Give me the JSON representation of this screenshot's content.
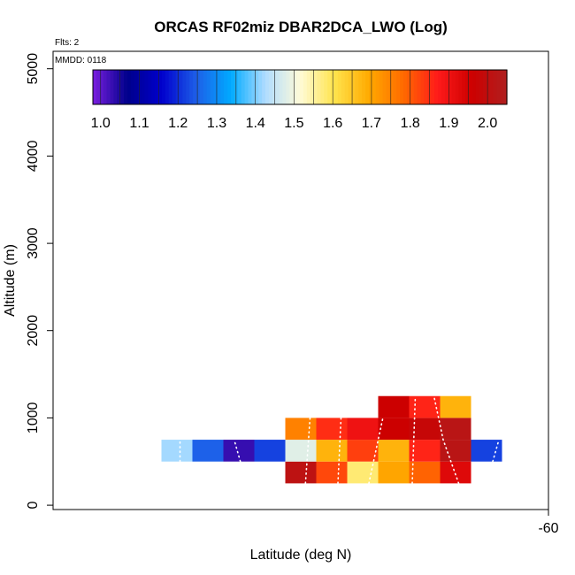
{
  "chart_data": {
    "type": "heatmap",
    "title": "ORCAS RF02miz DBAR2DCA_LWO (Log)",
    "flights_label": "Flts: 2",
    "date_label": "MMDD: 0118",
    "xlabel": "Latitude (deg N)",
    "ylabel": "Altitude (m)",
    "xlim": [
      -76,
      -60
    ],
    "ylim": [
      -50,
      5200
    ],
    "x_ticks": [
      -60
    ],
    "y_ticks": [
      0,
      1000,
      2000,
      3000,
      4000,
      5000
    ],
    "colorbar": {
      "ticks": [
        "1.0",
        "1.1",
        "1.2",
        "1.3",
        "1.4",
        "1.5",
        "1.6",
        "1.7",
        "1.8",
        "1.9",
        "2.0"
      ],
      "range": [
        0.98,
        2.05
      ],
      "colors": [
        "#7b1fe0",
        "#00008b",
        "#0000cd",
        "#1e5fe8",
        "#00aaff",
        "#b0dcff",
        "#fffbd8",
        "#ffe44d",
        "#ffaa00",
        "#ff6a00",
        "#ff1a1a",
        "#cc0000",
        "#b02020"
      ]
    },
    "cells": [
      {
        "lat": -72.0,
        "alt": 625,
        "value": 1.42
      },
      {
        "lat": -71.0,
        "alt": 625,
        "value": 1.25
      },
      {
        "lat": -70.0,
        "alt": 625,
        "value": 1.03
      },
      {
        "lat": -69.0,
        "alt": 625,
        "value": 1.22
      },
      {
        "lat": -68.0,
        "alt": 375,
        "value": 2.01
      },
      {
        "lat": -68.0,
        "alt": 625,
        "value": 1.48
      },
      {
        "lat": -68.0,
        "alt": 875,
        "value": 1.75
      },
      {
        "lat": -67.0,
        "alt": 375,
        "value": 1.82
      },
      {
        "lat": -67.0,
        "alt": 625,
        "value": 1.68
      },
      {
        "lat": -67.0,
        "alt": 875,
        "value": 1.85
      },
      {
        "lat": -66.0,
        "alt": 375,
        "value": 1.58
      },
      {
        "lat": -66.0,
        "alt": 625,
        "value": 1.83
      },
      {
        "lat": -66.0,
        "alt": 875,
        "value": 1.9
      },
      {
        "lat": -65.0,
        "alt": 375,
        "value": 1.7
      },
      {
        "lat": -65.0,
        "alt": 625,
        "value": 1.68
      },
      {
        "lat": -65.0,
        "alt": 875,
        "value": 1.96
      },
      {
        "lat": -65.0,
        "alt": 1125,
        "value": 1.96
      },
      {
        "lat": -64.0,
        "alt": 375,
        "value": 1.79
      },
      {
        "lat": -64.0,
        "alt": 625,
        "value": 1.86
      },
      {
        "lat": -64.0,
        "alt": 875,
        "value": 1.98
      },
      {
        "lat": -64.0,
        "alt": 1125,
        "value": 1.86
      },
      {
        "lat": -63.0,
        "alt": 375,
        "value": 1.93
      },
      {
        "lat": -63.0,
        "alt": 625,
        "value": 2.02
      },
      {
        "lat": -63.0,
        "alt": 875,
        "value": 2.02
      },
      {
        "lat": -63.0,
        "alt": 1125,
        "value": 1.68
      },
      {
        "lat": -62.0,
        "alt": 625,
        "value": 1.22
      }
    ],
    "flight_track": {
      "style": "dotted",
      "color": "#ffffff",
      "tracks": [
        [
          [
            -71.9,
            500
          ],
          [
            -71.9,
            750
          ]
        ],
        [
          [
            -69.95,
            500
          ],
          [
            -70.15,
            750
          ]
        ],
        [
          [
            -67.85,
            250
          ],
          [
            -67.7,
            1000
          ]
        ],
        [
          [
            -66.8,
            250
          ],
          [
            -66.7,
            1000
          ]
        ],
        [
          [
            -65.8,
            250
          ],
          [
            -65.35,
            1000
          ]
        ],
        [
          [
            -64.4,
            250
          ],
          [
            -64.3,
            1250
          ]
        ],
        [
          [
            -62.9,
            250
          ],
          [
            -63.4,
            750
          ],
          [
            -63.7,
            1250
          ]
        ],
        [
          [
            -61.8,
            500
          ],
          [
            -61.6,
            750
          ]
        ]
      ]
    }
  }
}
